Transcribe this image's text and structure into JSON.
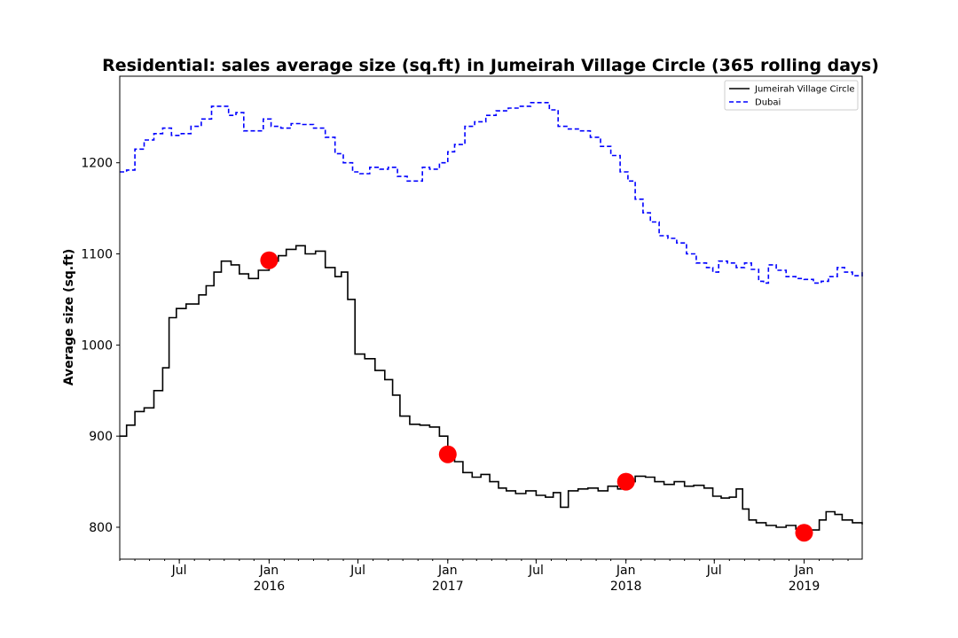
{
  "chart_data": {
    "type": "line",
    "title": "Residential: sales average size (sq.ft) in Jumeirah Village Circle (365 rolling days)",
    "xlabel": "",
    "ylabel": "Average size (sq.ft)",
    "xlim": [
      "2015-03-01",
      "2019-04-30"
    ],
    "ylim": [
      765,
      1295
    ],
    "grid": false,
    "legend_position": "top-right",
    "y_ticks": [
      800,
      900,
      1000,
      1100,
      1200
    ],
    "x_ticks": [
      {
        "date": "2015-07-01",
        "label": "Jul",
        "sublabel": ""
      },
      {
        "date": "2016-01-01",
        "label": "Jan",
        "sublabel": "2016"
      },
      {
        "date": "2016-07-01",
        "label": "Jul",
        "sublabel": ""
      },
      {
        "date": "2017-01-01",
        "label": "Jan",
        "sublabel": "2017"
      },
      {
        "date": "2017-07-01",
        "label": "Jul",
        "sublabel": ""
      },
      {
        "date": "2018-01-01",
        "label": "Jan",
        "sublabel": "2018"
      },
      {
        "date": "2018-07-01",
        "label": "Jul",
        "sublabel": ""
      },
      {
        "date": "2019-01-01",
        "label": "Jan",
        "sublabel": "2019"
      }
    ],
    "series": [
      {
        "name": "Jumeirah Village Circle",
        "color": "#000000",
        "style": "solid",
        "points": [
          [
            "2015-03-01",
            900
          ],
          [
            "2015-03-15",
            912
          ],
          [
            "2015-04-01",
            927
          ],
          [
            "2015-04-20",
            931
          ],
          [
            "2015-05-10",
            950
          ],
          [
            "2015-05-28",
            975
          ],
          [
            "2015-06-10",
            1030
          ],
          [
            "2015-06-25",
            1040
          ],
          [
            "2015-07-15",
            1045
          ],
          [
            "2015-08-10",
            1055
          ],
          [
            "2015-08-25",
            1065
          ],
          [
            "2015-09-10",
            1080
          ],
          [
            "2015-09-25",
            1092
          ],
          [
            "2015-10-15",
            1088
          ],
          [
            "2015-11-01",
            1078
          ],
          [
            "2015-11-20",
            1073
          ],
          [
            "2015-12-10",
            1082
          ],
          [
            "2016-01-01",
            1092
          ],
          [
            "2016-01-20",
            1098
          ],
          [
            "2016-02-05",
            1105
          ],
          [
            "2016-02-25",
            1109
          ],
          [
            "2016-03-15",
            1100
          ],
          [
            "2016-04-05",
            1103
          ],
          [
            "2016-04-25",
            1085
          ],
          [
            "2016-05-15",
            1075
          ],
          [
            "2016-05-28",
            1080
          ],
          [
            "2016-06-10",
            1050
          ],
          [
            "2016-06-25",
            990
          ],
          [
            "2016-07-15",
            985
          ],
          [
            "2016-08-05",
            972
          ],
          [
            "2016-08-25",
            962
          ],
          [
            "2016-09-10",
            945
          ],
          [
            "2016-09-25",
            922
          ],
          [
            "2016-10-15",
            913
          ],
          [
            "2016-11-05",
            912
          ],
          [
            "2016-11-25",
            910
          ],
          [
            "2016-12-15",
            900
          ],
          [
            "2017-01-01",
            880
          ],
          [
            "2017-01-15",
            872
          ],
          [
            "2017-02-01",
            860
          ],
          [
            "2017-02-20",
            855
          ],
          [
            "2017-03-10",
            858
          ],
          [
            "2017-03-28",
            850
          ],
          [
            "2017-04-15",
            843
          ],
          [
            "2017-05-01",
            840
          ],
          [
            "2017-05-20",
            837
          ],
          [
            "2017-06-10",
            840
          ],
          [
            "2017-07-01",
            835
          ],
          [
            "2017-07-20",
            833
          ],
          [
            "2017-08-05",
            838
          ],
          [
            "2017-08-20",
            822
          ],
          [
            "2017-09-05",
            840
          ],
          [
            "2017-09-25",
            842
          ],
          [
            "2017-10-15",
            843
          ],
          [
            "2017-11-05",
            840
          ],
          [
            "2017-11-25",
            845
          ],
          [
            "2017-12-15",
            842
          ],
          [
            "2018-01-01",
            850
          ],
          [
            "2018-01-20",
            856
          ],
          [
            "2018-02-10",
            855
          ],
          [
            "2018-03-01",
            850
          ],
          [
            "2018-03-20",
            847
          ],
          [
            "2018-04-10",
            850
          ],
          [
            "2018-05-01",
            845
          ],
          [
            "2018-05-20",
            846
          ],
          [
            "2018-06-10",
            843
          ],
          [
            "2018-06-28",
            834
          ],
          [
            "2018-07-15",
            832
          ],
          [
            "2018-08-01",
            833
          ],
          [
            "2018-08-15",
            842
          ],
          [
            "2018-08-28",
            820
          ],
          [
            "2018-09-10",
            808
          ],
          [
            "2018-09-25",
            805
          ],
          [
            "2018-10-15",
            802
          ],
          [
            "2018-11-05",
            800
          ],
          [
            "2018-11-25",
            802
          ],
          [
            "2018-12-15",
            798
          ],
          [
            "2019-01-01",
            795
          ],
          [
            "2019-01-15",
            797
          ],
          [
            "2019-02-01",
            808
          ],
          [
            "2019-02-15",
            817
          ],
          [
            "2019-03-05",
            814
          ],
          [
            "2019-03-20",
            808
          ],
          [
            "2019-04-10",
            805
          ],
          [
            "2019-04-30",
            803
          ]
        ]
      },
      {
        "name": "Dubai",
        "color": "#0000ff",
        "style": "dashed",
        "points": [
          [
            "2015-03-01",
            1190
          ],
          [
            "2015-03-15",
            1192
          ],
          [
            "2015-04-01",
            1215
          ],
          [
            "2015-04-20",
            1225
          ],
          [
            "2015-05-10",
            1232
          ],
          [
            "2015-05-28",
            1238
          ],
          [
            "2015-06-15",
            1230
          ],
          [
            "2015-07-05",
            1232
          ],
          [
            "2015-07-25",
            1240
          ],
          [
            "2015-08-15",
            1248
          ],
          [
            "2015-09-05",
            1262
          ],
          [
            "2015-09-25",
            1262
          ],
          [
            "2015-10-10",
            1252
          ],
          [
            "2015-10-25",
            1255
          ],
          [
            "2015-11-10",
            1235
          ],
          [
            "2015-12-01",
            1235
          ],
          [
            "2015-12-20",
            1248
          ],
          [
            "2016-01-05",
            1240
          ],
          [
            "2016-01-25",
            1238
          ],
          [
            "2016-02-15",
            1243
          ],
          [
            "2016-03-10",
            1242
          ],
          [
            "2016-04-01",
            1238
          ],
          [
            "2016-04-25",
            1228
          ],
          [
            "2016-05-15",
            1210
          ],
          [
            "2016-06-01",
            1200
          ],
          [
            "2016-06-20",
            1190
          ],
          [
            "2016-07-05",
            1188
          ],
          [
            "2016-07-25",
            1195
          ],
          [
            "2016-08-15",
            1193
          ],
          [
            "2016-09-01",
            1195
          ],
          [
            "2016-09-20",
            1185
          ],
          [
            "2016-10-10",
            1180
          ],
          [
            "2016-10-25",
            1180
          ],
          [
            "2016-11-10",
            1195
          ],
          [
            "2016-11-25",
            1193
          ],
          [
            "2016-12-15",
            1200
          ],
          [
            "2017-01-01",
            1212
          ],
          [
            "2017-01-15",
            1220
          ],
          [
            "2017-02-05",
            1240
          ],
          [
            "2017-02-25",
            1245
          ],
          [
            "2017-03-20",
            1252
          ],
          [
            "2017-04-10",
            1257
          ],
          [
            "2017-05-05",
            1260
          ],
          [
            "2017-05-28",
            1262
          ],
          [
            "2017-06-20",
            1266
          ],
          [
            "2017-07-10",
            1266
          ],
          [
            "2017-07-28",
            1258
          ],
          [
            "2017-08-15",
            1240
          ],
          [
            "2017-09-05",
            1237
          ],
          [
            "2017-09-28",
            1235
          ],
          [
            "2017-10-20",
            1228
          ],
          [
            "2017-11-10",
            1218
          ],
          [
            "2017-12-01",
            1208
          ],
          [
            "2017-12-20",
            1190
          ],
          [
            "2018-01-05",
            1180
          ],
          [
            "2018-01-20",
            1160
          ],
          [
            "2018-02-05",
            1145
          ],
          [
            "2018-02-20",
            1135
          ],
          [
            "2018-03-10",
            1120
          ],
          [
            "2018-03-28",
            1117
          ],
          [
            "2018-04-15",
            1112
          ],
          [
            "2018-05-05",
            1100
          ],
          [
            "2018-05-25",
            1090
          ],
          [
            "2018-06-15",
            1085
          ],
          [
            "2018-06-28",
            1080
          ],
          [
            "2018-07-10",
            1092
          ],
          [
            "2018-07-28",
            1090
          ],
          [
            "2018-08-15",
            1085
          ],
          [
            "2018-09-01",
            1090
          ],
          [
            "2018-09-15",
            1083
          ],
          [
            "2018-09-30",
            1070
          ],
          [
            "2018-10-10",
            1068
          ],
          [
            "2018-10-20",
            1088
          ],
          [
            "2018-11-05",
            1082
          ],
          [
            "2018-11-25",
            1075
          ],
          [
            "2018-12-15",
            1073
          ],
          [
            "2019-01-01",
            1072
          ],
          [
            "2019-01-20",
            1068
          ],
          [
            "2019-02-05",
            1070
          ],
          [
            "2019-02-20",
            1075
          ],
          [
            "2019-03-10",
            1085
          ],
          [
            "2019-03-25",
            1080
          ],
          [
            "2019-04-10",
            1076
          ],
          [
            "2019-04-30",
            1080
          ]
        ]
      }
    ],
    "markers": {
      "color": "#ff0000",
      "points": [
        [
          "2016-01-01",
          1093
        ],
        [
          "2017-01-01",
          880
        ],
        [
          "2018-01-01",
          850
        ],
        [
          "2019-01-01",
          794
        ]
      ]
    }
  }
}
